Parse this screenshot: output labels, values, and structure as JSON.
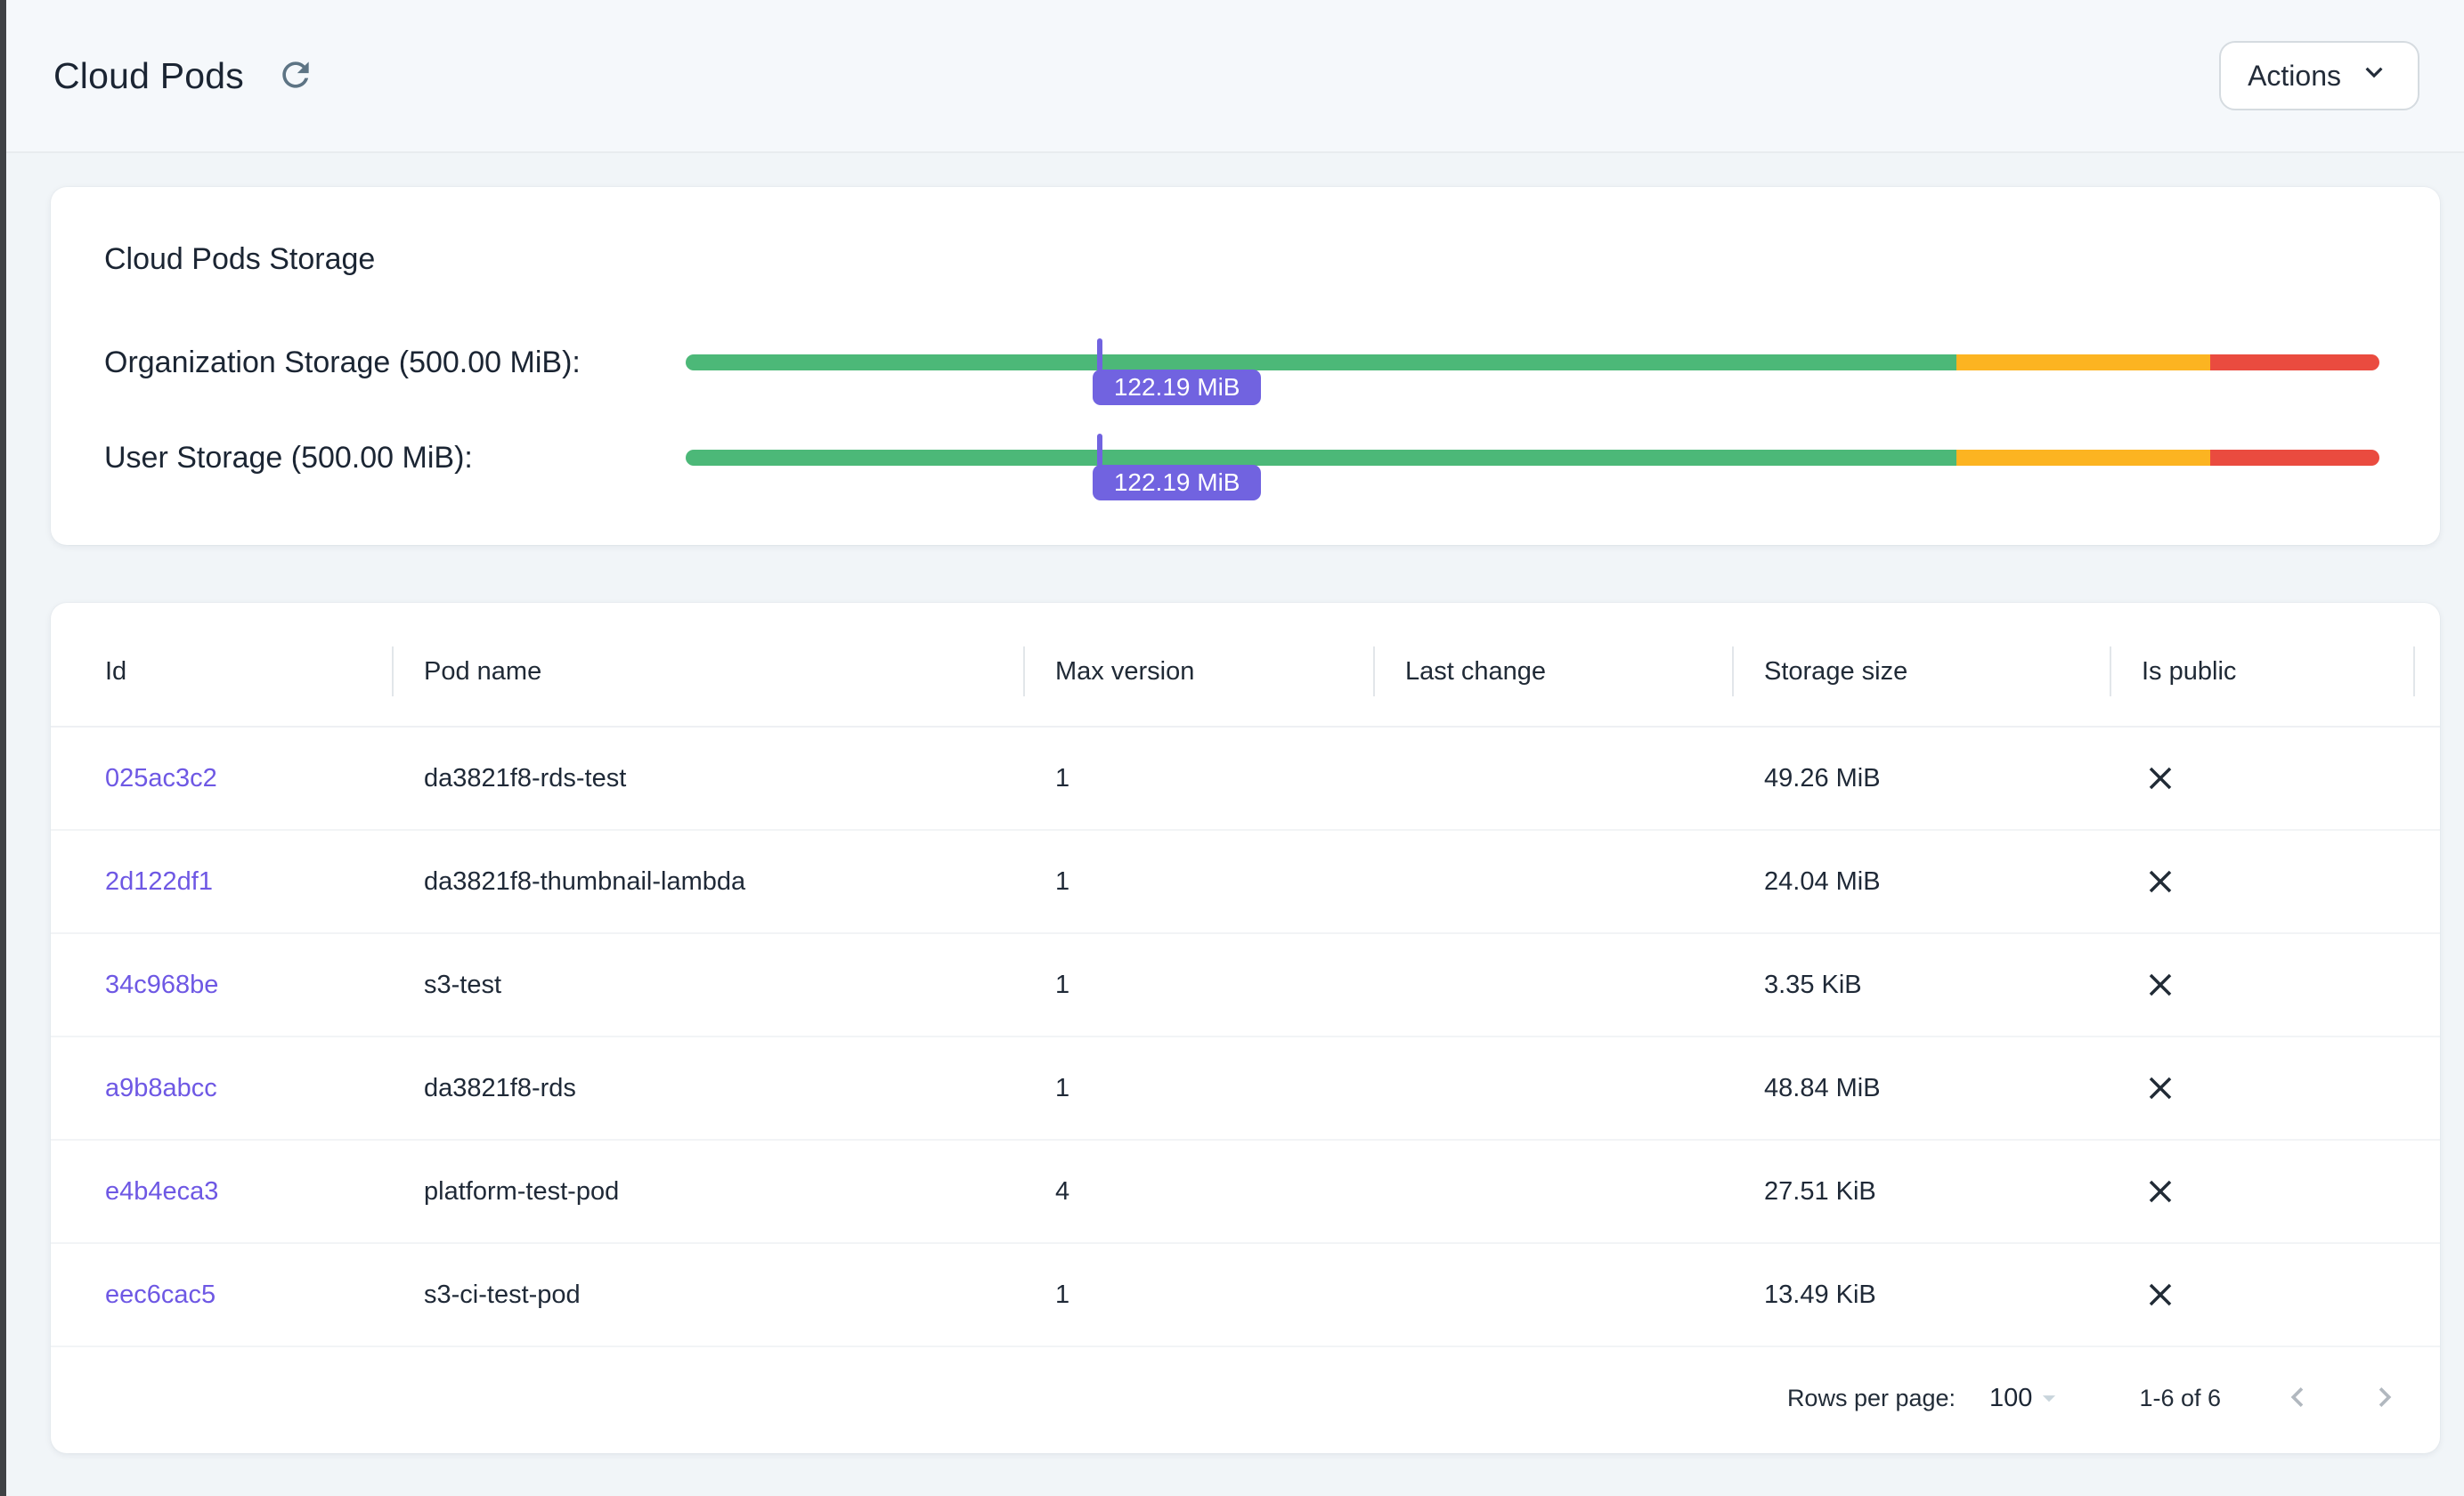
{
  "header": {
    "title": "Cloud Pods",
    "actions_label": "Actions"
  },
  "colors": {
    "green": "#4cb878",
    "amber": "#fcb421",
    "red": "#ea4b3f",
    "purple": "#7163e0",
    "link": "#6e58e4"
  },
  "storage_card": {
    "title": "Cloud Pods Storage",
    "bars": [
      {
        "label": "Organization Storage (500.00 MiB):",
        "badge_text": "122.19 MiB",
        "value_percent": 24.44,
        "green_end_percent": 75,
        "amber_end_percent": 90
      },
      {
        "label": "User Storage (500.00 MiB):",
        "badge_text": "122.19 MiB",
        "value_percent": 24.44,
        "green_end_percent": 75,
        "amber_end_percent": 90
      }
    ]
  },
  "table": {
    "columns": [
      "Id",
      "Pod name",
      "Max version",
      "Last change",
      "Storage size",
      "Is public"
    ],
    "rows": [
      {
        "id": "025ac3c2",
        "pod_name": "da3821f8-rds-test",
        "max_version": "1",
        "last_change": "",
        "storage_size": "49.26 MiB",
        "is_public": false
      },
      {
        "id": "2d122df1",
        "pod_name": "da3821f8-thumbnail-lambda",
        "max_version": "1",
        "last_change": "",
        "storage_size": "24.04 MiB",
        "is_public": false
      },
      {
        "id": "34c968be",
        "pod_name": "s3-test",
        "max_version": "1",
        "last_change": "",
        "storage_size": "3.35 KiB",
        "is_public": false
      },
      {
        "id": "a9b8abcc",
        "pod_name": "da3821f8-rds",
        "max_version": "1",
        "last_change": "",
        "storage_size": "48.84 MiB",
        "is_public": false
      },
      {
        "id": "e4b4eca3",
        "pod_name": "platform-test-pod",
        "max_version": "4",
        "last_change": "",
        "storage_size": "27.51 KiB",
        "is_public": false
      },
      {
        "id": "eec6cac5",
        "pod_name": "s3-ci-test-pod",
        "max_version": "1",
        "last_change": "",
        "storage_size": "13.49 KiB",
        "is_public": false
      }
    ],
    "pagination": {
      "rows_per_page_label": "Rows per page:",
      "rows_per_page_value": "100",
      "range_label": "1-6 of 6"
    }
  }
}
